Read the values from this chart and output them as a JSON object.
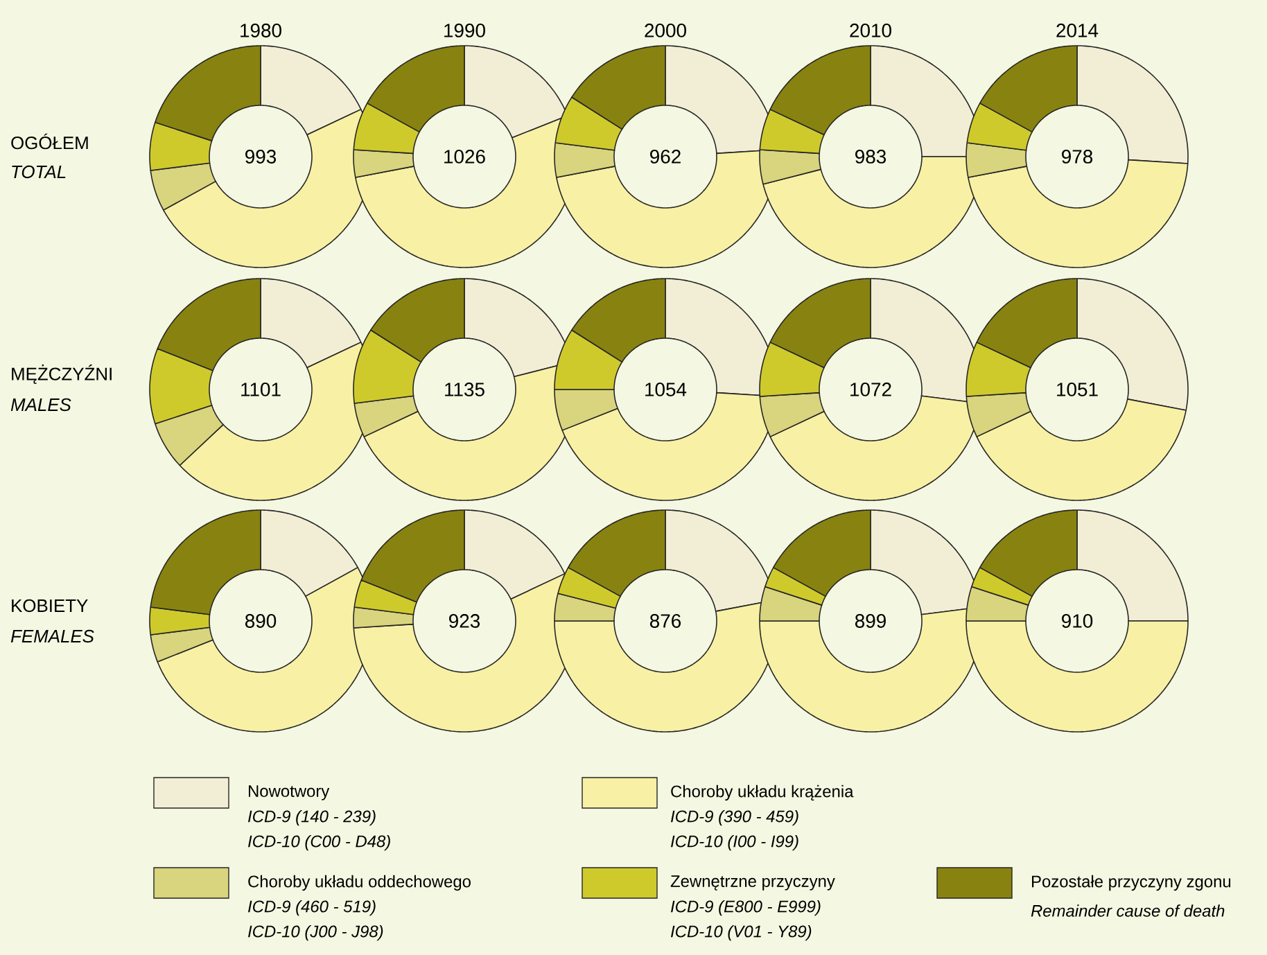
{
  "chart_data": [
    {
      "type": "donut",
      "title": "1980",
      "categories": [
        "Nowotwory",
        "Choroby układu krążenia",
        "Choroby układu oddechowego",
        "Zewnętrzne przyczyny",
        "Pozostałe przyczyny zgonu"
      ],
      "values": [
        18,
        49,
        6,
        7,
        20
      ],
      "colors": [
        "#f2eed6",
        "#f8f0a4",
        "#d9d47e",
        "#cfca2c",
        "#888310"
      ],
      "legend": "bottom",
      "annotations": [
        "993",
        "OGÓŁEM",
        "TOTAL",
        "ICD-9 (140 - 239)",
        "ICD-10 (C00 - D48)",
        "ICD-9 (390 - 459)",
        "ICD-10 (I00 - I99)",
        "ICD-9 (460 - 519)",
        "ICD-10 (J00 - J98)",
        "ICD-9 (E800 - E999)",
        "ICD-10 (V01 - Y89)",
        "Remainder cause of death"
      ]
    },
    {
      "type": "donut",
      "title": "1990",
      "categories": [
        null,
        null,
        null,
        null,
        null
      ],
      "values": [
        19,
        53,
        4,
        7,
        17
      ],
      "colors": [
        "#f2eed6",
        "#f8f0a4",
        "#d9d47e",
        "#cfca2c",
        "#888310"
      ],
      "annotations": [
        "1026"
      ]
    },
    {
      "type": "donut",
      "title": "2000",
      "categories": [
        null,
        null,
        null,
        null,
        null
      ],
      "values": [
        24,
        48,
        5,
        7,
        16
      ],
      "colors": [
        "#f2eed6",
        "#f8f0a4",
        "#d9d47e",
        "#cfca2c",
        "#888310"
      ],
      "annotations": [
        "962"
      ]
    },
    {
      "type": "donut",
      "title": "2010",
      "categories": [
        null,
        null,
        null,
        null,
        null
      ],
      "values": [
        25,
        46,
        5,
        6,
        18
      ],
      "colors": [
        "#f2eed6",
        "#f8f0a4",
        "#d9d47e",
        "#cfca2c",
        "#888310"
      ],
      "annotations": [
        "983"
      ]
    },
    {
      "type": "donut",
      "title": "2014",
      "categories": [
        null,
        null,
        null,
        null,
        null
      ],
      "values": [
        26,
        46,
        5,
        6,
        17
      ],
      "colors": [
        "#f2eed6",
        "#f8f0a4",
        "#d9d47e",
        "#cfca2c",
        "#888310"
      ],
      "annotations": [
        "978"
      ]
    },
    {
      "type": "donut",
      "categories": [
        null,
        null,
        null,
        null,
        null
      ],
      "values": [
        18,
        45,
        7,
        11,
        19
      ],
      "colors": [
        "#f2eed6",
        "#f8f0a4",
        "#d9d47e",
        "#cfca2c",
        "#888310"
      ],
      "annotations": [
        "1101",
        "MĘŻCZYŹNI",
        "MALES"
      ]
    },
    {
      "type": "donut",
      "categories": [
        null,
        null,
        null,
        null,
        null
      ],
      "values": [
        21,
        47,
        5,
        11,
        16
      ],
      "colors": [
        "#f2eed6",
        "#f8f0a4",
        "#d9d47e",
        "#cfca2c",
        "#888310"
      ],
      "annotations": [
        "1135"
      ]
    },
    {
      "type": "donut",
      "categories": [
        null,
        null,
        null,
        null,
        null
      ],
      "values": [
        26,
        43,
        6,
        9,
        16
      ],
      "colors": [
        "#f2eed6",
        "#f8f0a4",
        "#d9d47e",
        "#cfca2c",
        "#888310"
      ],
      "annotations": [
        "1054"
      ]
    },
    {
      "type": "donut",
      "categories": [
        null,
        null,
        null,
        null,
        null
      ],
      "values": [
        27,
        41,
        6,
        8,
        18
      ],
      "colors": [
        "#f2eed6",
        "#f8f0a4",
        "#d9d47e",
        "#cfca2c",
        "#888310"
      ],
      "annotations": [
        "1072"
      ]
    },
    {
      "type": "donut",
      "categories": [
        null,
        null,
        null,
        null,
        null
      ],
      "values": [
        28,
        40,
        6,
        8,
        18
      ],
      "colors": [
        "#f2eed6",
        "#f8f0a4",
        "#d9d47e",
        "#cfca2c",
        "#888310"
      ],
      "annotations": [
        "1051"
      ]
    },
    {
      "type": "donut",
      "categories": [
        null,
        null,
        null,
        null,
        null
      ],
      "values": [
        17,
        52,
        4,
        4,
        23
      ],
      "colors": [
        "#f2eed6",
        "#f8f0a4",
        "#d9d47e",
        "#cfca2c",
        "#888310"
      ],
      "annotations": [
        "890",
        "KOBIETY",
        "FEMALES"
      ]
    },
    {
      "type": "donut",
      "categories": [
        null,
        null,
        null,
        null,
        null
      ],
      "values": [
        18,
        56,
        3,
        4,
        19
      ],
      "colors": [
        "#f2eed6",
        "#f8f0a4",
        "#d9d47e",
        "#cfca2c",
        "#888310"
      ],
      "annotations": [
        "923"
      ]
    },
    {
      "type": "donut",
      "categories": [
        null,
        null,
        null,
        null,
        null
      ],
      "values": [
        22,
        53,
        4,
        4,
        17
      ],
      "colors": [
        "#f2eed6",
        "#f8f0a4",
        "#d9d47e",
        "#cfca2c",
        "#888310"
      ],
      "annotations": [
        "876"
      ]
    },
    {
      "type": "donut",
      "categories": [
        null,
        null,
        null,
        null,
        null
      ],
      "values": [
        23,
        52,
        5,
        3,
        17
      ],
      "colors": [
        "#f2eed6",
        "#f8f0a4",
        "#d9d47e",
        "#cfca2c",
        "#888310"
      ],
      "annotations": [
        "899"
      ]
    },
    {
      "type": "donut",
      "categories": [
        null,
        null,
        null,
        null,
        null
      ],
      "values": [
        25,
        50,
        5,
        3,
        17
      ],
      "colors": [
        "#f2eed6",
        "#f8f0a4",
        "#d9d47e",
        "#cfca2c",
        "#888310"
      ],
      "annotations": [
        "910"
      ]
    }
  ]
}
